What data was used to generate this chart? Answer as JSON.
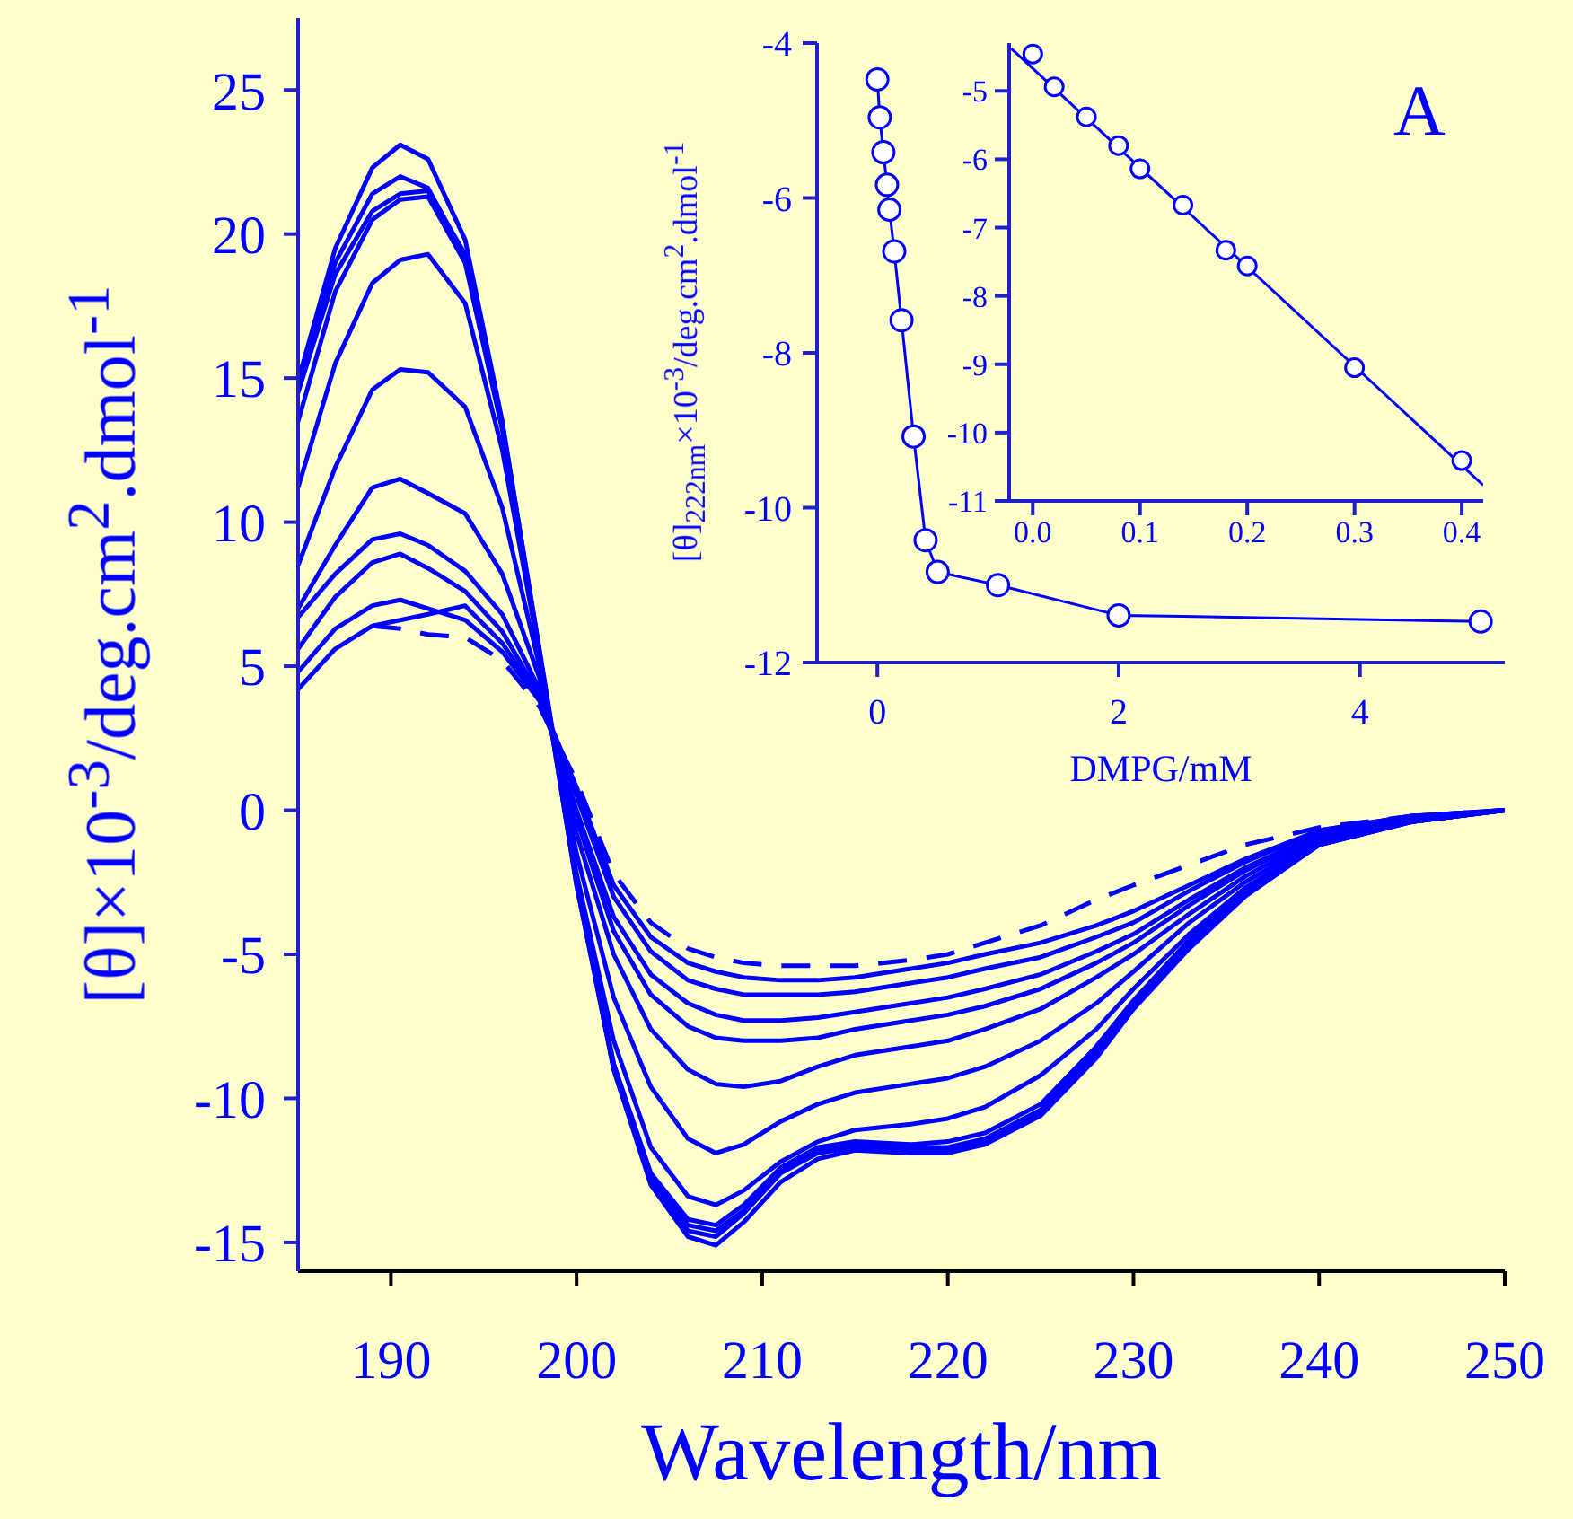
{
  "chart_data": [
    {
      "type": "line",
      "xlabel": "Wavelength/nm",
      "ylabel": "[θ]×10$^{-3}$/deg.cm$^{2}$.dmol$^{-1}$",
      "annotations": [
        "A"
      ],
      "marker": "none",
      "line_style": "solid",
      "xlim": [
        185,
        250
      ],
      "xticks": [
        190,
        200,
        210,
        220,
        230,
        240,
        250
      ],
      "ylim": [
        -16,
        27.5
      ],
      "yticks": [
        -15,
        -10,
        -5,
        0,
        5,
        10,
        15,
        20,
        25
      ],
      "x": [
        185,
        187,
        189,
        190.5,
        192,
        194,
        196,
        198,
        200,
        202,
        204,
        206,
        207.5,
        209,
        211,
        213,
        215,
        218,
        220,
        222,
        225,
        228,
        230,
        233,
        236,
        240,
        245,
        250
      ],
      "series": [
        {
          "color": "#0000ff",
          "values": [
            14.9,
            19.5,
            22.3,
            23.1,
            22.6,
            19.8,
            13.5,
            5.5,
            -2.5,
            -9.0,
            -13.0,
            -14.8,
            -15.1,
            -14.3,
            -12.9,
            -12.1,
            -11.8,
            -11.9,
            -11.9,
            -11.6,
            -10.6,
            -8.6,
            -6.9,
            -4.8,
            -3.0,
            -1.2,
            -0.4,
            0
          ]
        },
        {
          "color": "#0000ff",
          "values": [
            14.9,
            19.0,
            21.4,
            22.0,
            21.6,
            19.2,
            13.3,
            5.4,
            -2.6,
            -9.0,
            -12.9,
            -14.6,
            -14.8,
            -14.0,
            -12.6,
            -11.9,
            -11.7,
            -11.8,
            -11.8,
            -11.5,
            -10.5,
            -8.5,
            -6.8,
            -4.7,
            -2.9,
            -1.2,
            -0.4,
            0
          ]
        },
        {
          "color": "#0000ff",
          "values": [
            14.5,
            18.6,
            20.8,
            21.4,
            21.5,
            19.3,
            13.4,
            5.6,
            -2.4,
            -8.8,
            -12.7,
            -14.4,
            -14.6,
            -13.9,
            -12.5,
            -11.8,
            -11.6,
            -11.7,
            -11.7,
            -11.4,
            -10.4,
            -8.4,
            -6.7,
            -4.6,
            -2.9,
            -1.2,
            -0.4,
            0
          ]
        },
        {
          "color": "#0000ff",
          "values": [
            13.5,
            18.0,
            20.5,
            21.2,
            21.3,
            19.0,
            13.2,
            5.4,
            -2.6,
            -8.8,
            -12.6,
            -14.2,
            -14.4,
            -13.7,
            -12.4,
            -11.7,
            -11.5,
            -11.6,
            -11.5,
            -11.2,
            -10.2,
            -8.2,
            -6.6,
            -4.5,
            -2.8,
            -1.1,
            -0.4,
            0
          ]
        },
        {
          "color": "#0000ff",
          "values": [
            11.2,
            15.5,
            18.3,
            19.1,
            19.3,
            17.6,
            12.5,
            5.4,
            -2.2,
            -8.0,
            -11.7,
            -13.4,
            -13.7,
            -13.2,
            -12.2,
            -11.5,
            -11.1,
            -10.9,
            -10.7,
            -10.3,
            -9.2,
            -7.6,
            -6.2,
            -4.3,
            -2.7,
            -1.1,
            -0.4,
            0
          ]
        },
        {
          "color": "#0000ff",
          "values": [
            8.5,
            11.9,
            14.6,
            15.3,
            15.2,
            14.0,
            10.5,
            5.0,
            -1.5,
            -6.5,
            -9.6,
            -11.4,
            -11.9,
            -11.6,
            -10.8,
            -10.2,
            -9.8,
            -9.5,
            -9.3,
            -8.9,
            -8.0,
            -6.7,
            -5.6,
            -3.9,
            -2.5,
            -1.0,
            -0.3,
            0
          ]
        },
        {
          "color": "#0000ff",
          "values": [
            7.0,
            9.2,
            11.2,
            11.5,
            11.0,
            10.3,
            8.2,
            4.6,
            -0.8,
            -5.0,
            -7.6,
            -9.0,
            -9.5,
            -9.6,
            -9.4,
            -8.9,
            -8.5,
            -8.2,
            -8.0,
            -7.6,
            -6.9,
            -5.8,
            -5.0,
            -3.6,
            -2.3,
            -0.9,
            -0.3,
            0
          ]
        },
        {
          "color": "#0000ff",
          "values": [
            6.7,
            8.2,
            9.4,
            9.6,
            9.2,
            8.3,
            6.8,
            4.2,
            -0.3,
            -4.2,
            -6.4,
            -7.5,
            -7.9,
            -8.0,
            -8.0,
            -7.9,
            -7.6,
            -7.3,
            -7.1,
            -6.8,
            -6.2,
            -5.3,
            -4.6,
            -3.3,
            -2.1,
            -0.8,
            -0.3,
            0
          ]
        },
        {
          "color": "#0000ff",
          "values": [
            5.6,
            7.4,
            8.6,
            8.9,
            8.4,
            7.6,
            6.2,
            4.0,
            0.0,
            -3.7,
            -5.7,
            -6.7,
            -7.1,
            -7.3,
            -7.3,
            -7.2,
            -7.0,
            -6.7,
            -6.5,
            -6.2,
            -5.7,
            -4.9,
            -4.3,
            -3.1,
            -2.0,
            -0.8,
            -0.3,
            0
          ]
        },
        {
          "color": "#0000ff",
          "values": [
            4.8,
            6.3,
            7.1,
            7.3,
            7.0,
            6.6,
            5.5,
            3.8,
            0.5,
            -3.0,
            -4.9,
            -5.9,
            -6.2,
            -6.4,
            -6.4,
            -6.4,
            -6.3,
            -6.0,
            -5.8,
            -5.5,
            -5.1,
            -4.4,
            -3.9,
            -2.8,
            -1.8,
            -0.7,
            -0.2,
            0
          ]
        },
        {
          "color": "#0000ff",
          "values": [
            4.2,
            5.6,
            6.4,
            6.6,
            6.8,
            7.1,
            5.8,
            3.9,
            0.8,
            -2.6,
            -4.4,
            -5.3,
            -5.6,
            -5.8,
            -5.9,
            -5.9,
            -5.8,
            -5.5,
            -5.3,
            -5.0,
            -4.6,
            -4.0,
            -3.5,
            -2.6,
            -1.7,
            -0.7,
            -0.2,
            0
          ]
        },
        {
          "color": "#0000ff",
          "line_style": "dashed",
          "values": [
            null,
            null,
            6.4,
            6.3,
            6.1,
            6.0,
            5.2,
            3.6,
            1.0,
            -2.2,
            -3.9,
            -4.8,
            -5.1,
            -5.3,
            -5.4,
            -5.4,
            -5.4,
            -5.2,
            -5.0,
            -4.6,
            -4.0,
            -3.1,
            -2.6,
            -1.9,
            -1.2,
            -0.6,
            -0.2,
            0
          ]
        }
      ]
    },
    {
      "type": "line",
      "xlabel": "DMPG/mM",
      "ylabel": "[θ]$_{222nm}$×10$^{-3}$/deg.cm$^{2}$.dmol$^{-1}$",
      "marker": "circle",
      "xlim": [
        -0.5,
        5.2
      ],
      "xticks": [
        0,
        2,
        4
      ],
      "ylim": [
        -12,
        -4
      ],
      "yticks": [
        -12,
        -10,
        -8,
        -6,
        -4
      ],
      "x": [
        0,
        0.02,
        0.05,
        0.08,
        0.1,
        0.14,
        0.2,
        0.3,
        0.4,
        0.5,
        1,
        2,
        5
      ],
      "series": [
        {
          "color": "#0000ff",
          "values": [
            -4.47,
            -4.96,
            -5.41,
            -5.83,
            -6.15,
            -6.69,
            -7.58,
            -9.08,
            -10.42,
            -10.83,
            -11.0,
            -11.39,
            -11.47
          ]
        }
      ]
    },
    {
      "type": "scatter",
      "marker": "circle",
      "xlim": [
        -0.022,
        0.42
      ],
      "xticks": [
        {
          "value": 0,
          "label": "0.0"
        },
        0.1,
        0.2,
        0.3,
        0.4
      ],
      "ylim": [
        -11,
        -4.3
      ],
      "yticks": [
        -11,
        -10,
        -9,
        -8,
        -7,
        -6,
        -5
      ],
      "series": [
        {
          "color": "#0000ff",
          "x": [
            0,
            0.02,
            0.05,
            0.08,
            0.1,
            0.14,
            0.18,
            0.2,
            0.3,
            0.4
          ],
          "values": [
            -4.46,
            -4.94,
            -5.38,
            -5.8,
            -6.14,
            -6.67,
            -7.33,
            -7.56,
            -9.05,
            -10.41
          ]
        },
        {
          "type": "line",
          "marker": "none",
          "color": "#0000ff",
          "x": [
            -0.02,
            0.42
          ],
          "values": [
            -4.38,
            -10.77
          ]
        }
      ]
    }
  ]
}
